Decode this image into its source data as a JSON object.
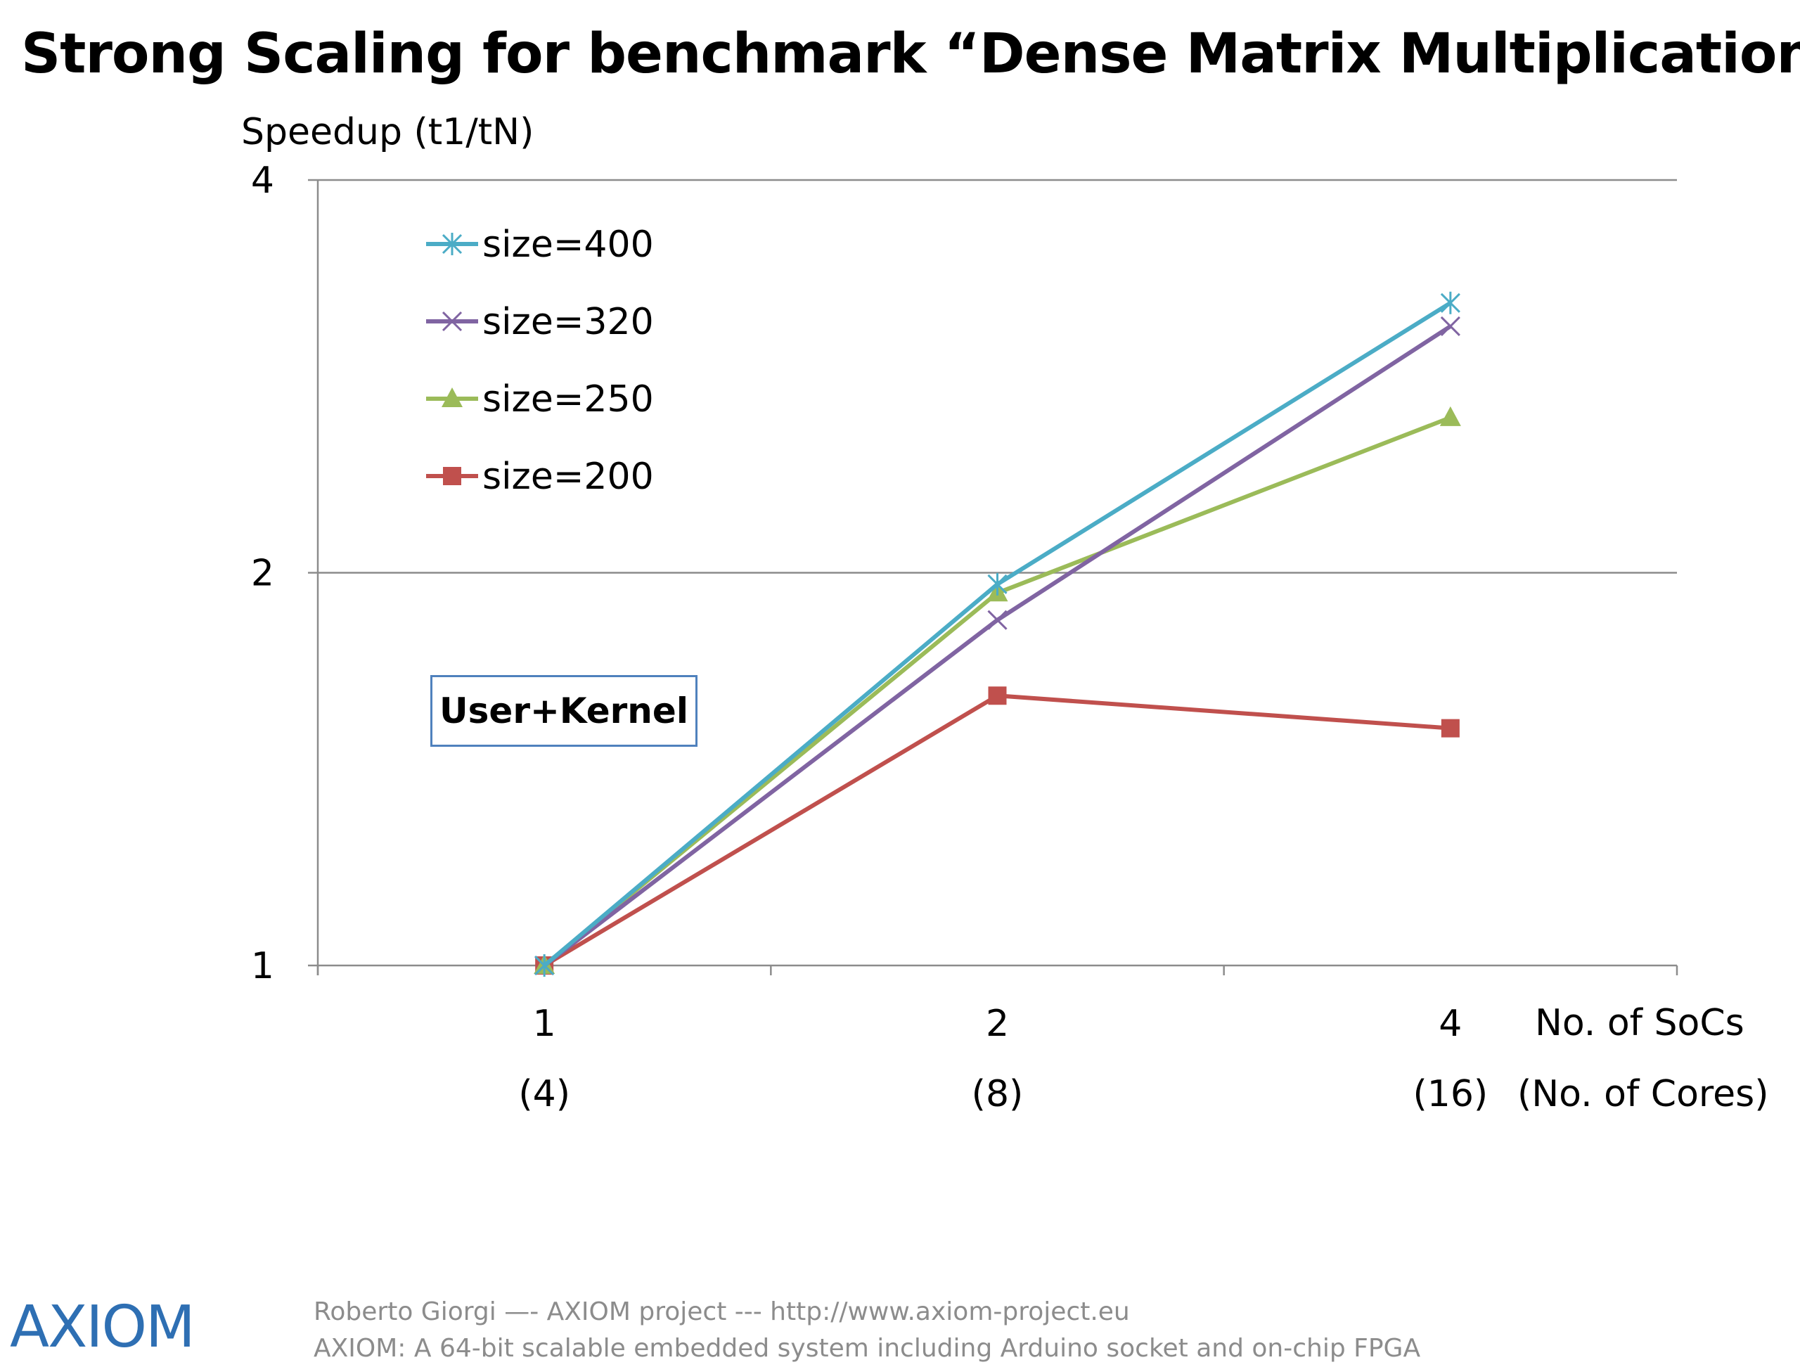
{
  "slide": {
    "title": "Strong Scaling for benchmark “Dense Matrix Multiplication”",
    "annotation": "User+Kernel"
  },
  "chart_data": {
    "type": "line",
    "title": "Strong Scaling for benchmark “Dense Matrix Multiplication”",
    "ylabel": "Speedup (t1/tN)",
    "xlabel": "No. of SoCs",
    "xlabel_secondary": "(No. of Cores)",
    "y_scale": "log2",
    "ylim": [
      1,
      4
    ],
    "y_ticks": [
      1,
      2,
      4
    ],
    "grid": true,
    "legend_position": "top-left",
    "categories": [
      "1",
      "2",
      "4"
    ],
    "categories_secondary": [
      "(4)",
      "(8)",
      "(16)"
    ],
    "series": [
      {
        "name": "size=400",
        "values": [
          1.0,
          1.96,
          3.22
        ],
        "color": "#4bacc6",
        "marker": "asterisk"
      },
      {
        "name": "size=320",
        "values": [
          1.0,
          1.84,
          3.09
        ],
        "color": "#8064a2",
        "marker": "x"
      },
      {
        "name": "size=250",
        "values": [
          1.0,
          1.93,
          2.63
        ],
        "color": "#9bbb59",
        "marker": "triangle"
      },
      {
        "name": "size=200",
        "values": [
          1.0,
          1.61,
          1.52
        ],
        "color": "#c0504d",
        "marker": "square"
      }
    ]
  },
  "footer": {
    "logo": "AXIOM",
    "line1": "Roberto Giorgi  —-   AXIOM project  ---  http://www.axiom-project.eu",
    "line2": "AXIOM: A 64-bit scalable embedded system including Arduino socket and on-chip FPGA"
  }
}
